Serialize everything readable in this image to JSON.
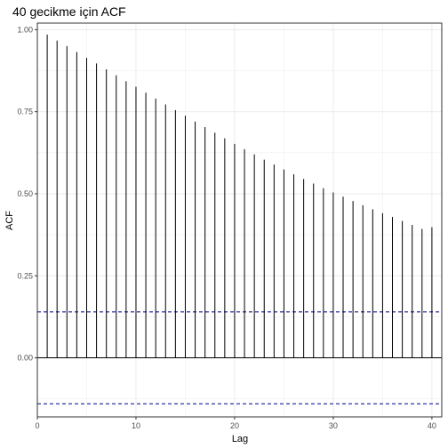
{
  "chart_data": {
    "type": "bar",
    "title": "40 gecikme için ACF",
    "xlabel": "Lag",
    "ylabel": "ACF",
    "xlim": [
      0,
      41
    ],
    "ylim": [
      -0.18,
      1.02
    ],
    "xticks": [
      0,
      10,
      20,
      30,
      40
    ],
    "xtick_labels": [
      "0",
      "10",
      "20",
      "30",
      "40"
    ],
    "yticks": [
      0,
      0.25,
      0.5,
      0.75,
      1
    ],
    "ytick_labels": [
      "0.00",
      "0.25",
      "0.50",
      "0.75",
      "1.00"
    ],
    "grid": true,
    "legend": "none",
    "lags": [
      1,
      2,
      3,
      4,
      5,
      6,
      7,
      8,
      9,
      10,
      11,
      12,
      13,
      14,
      15,
      16,
      17,
      18,
      19,
      20,
      21,
      22,
      23,
      24,
      25,
      26,
      27,
      28,
      29,
      30,
      31,
      32,
      33,
      34,
      35,
      36,
      37,
      38,
      39,
      40
    ],
    "values": [
      0.985,
      0.967,
      0.95,
      0.932,
      0.914,
      0.897,
      0.879,
      0.861,
      0.843,
      0.826,
      0.808,
      0.79,
      0.772,
      0.755,
      0.738,
      0.72,
      0.703,
      0.686,
      0.669,
      0.652,
      0.636,
      0.62,
      0.604,
      0.589,
      0.574,
      0.559,
      0.545,
      0.531,
      0.517,
      0.504,
      0.491,
      0.478,
      0.465,
      0.453,
      0.441,
      0.429,
      0.417,
      0.405,
      0.393,
      0.398
    ],
    "confidence_bounds": [
      0.14,
      -0.14
    ],
    "colors": {
      "bars": "#000000",
      "bounds": "#00008b",
      "grid": "#ebebeb",
      "panel_border": "#333333"
    }
  }
}
